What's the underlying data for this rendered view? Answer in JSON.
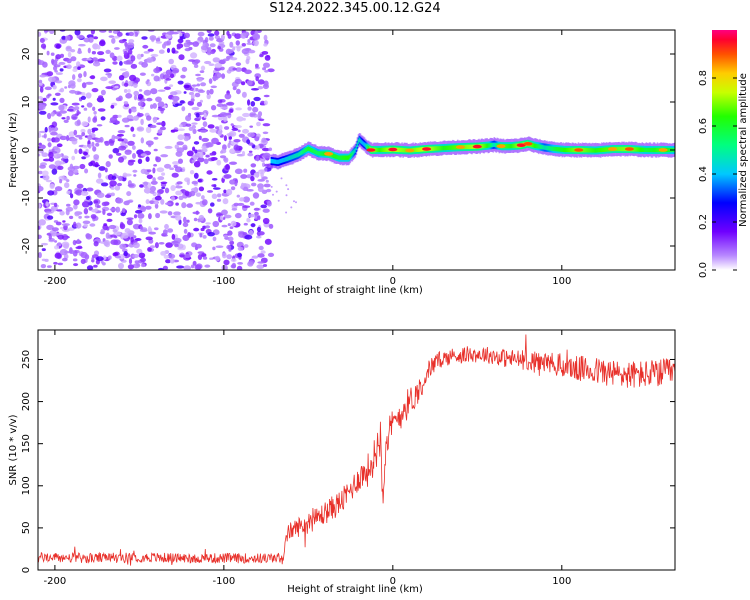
{
  "title": "S124.2022.345.00.12.G24",
  "chart_data": [
    {
      "type": "heatmap",
      "title": "S124.2022.345.00.12.G24",
      "xlabel": "Height of straight line (km)",
      "ylabel": "Frequency (Hz)",
      "xlim": [
        -210,
        167
      ],
      "ylim": [
        -25,
        25
      ],
      "xticks": [
        -200,
        -100,
        0,
        100
      ],
      "xtick_labels": [
        "-200",
        "-100",
        "0",
        "100"
      ],
      "yticks": [
        20,
        10,
        0,
        -10,
        -20
      ],
      "ytick_labels": [
        "20",
        "10",
        "0",
        "-10",
        "-20"
      ],
      "colorbar": {
        "label": "Normalized spectral amplitude",
        "range": [
          0,
          1
        ],
        "ticks": [
          0.0,
          0.2,
          0.4,
          0.6,
          0.8
        ],
        "tick_labels": [
          "0.0",
          "0.2",
          "0.4",
          "0.6",
          "0.8"
        ]
      },
      "noise_region": {
        "x_range": [
          -210,
          -72
        ],
        "freq_range": [
          -25,
          25
        ],
        "amplitude_range": [
          0.0,
          0.2
        ]
      },
      "ridge": {
        "x": [
          -72,
          -68,
          -62,
          -56,
          -50,
          -44,
          -38,
          -32,
          -26,
          -22,
          -20,
          -17,
          -13,
          -8,
          0,
          10,
          20,
          30,
          40,
          50,
          56,
          60,
          64,
          70,
          76,
          80,
          84,
          90,
          96,
          102,
          110,
          120,
          130,
          140,
          150,
          160,
          167
        ],
        "freq": [
          -2.3,
          -2.5,
          -1.8,
          -1.0,
          0.3,
          -0.7,
          -0.8,
          -1.6,
          -1.6,
          0.0,
          2.2,
          1.2,
          0.0,
          0.0,
          0.1,
          -0.1,
          0.2,
          0.4,
          0.6,
          0.7,
          0.9,
          1.1,
          0.8,
          0.8,
          1.0,
          1.3,
          0.9,
          0.5,
          0.2,
          0.0,
          0.0,
          -0.1,
          0.2,
          0.2,
          0.0,
          0.0,
          0.0
        ],
        "amplitude": [
          0.35,
          0.45,
          0.55,
          0.6,
          0.75,
          0.7,
          0.85,
          0.75,
          0.8,
          0.55,
          0.6,
          0.45,
          0.95,
          0.8,
          0.95,
          0.85,
          0.95,
          0.8,
          0.85,
          0.95,
          0.8,
          0.55,
          0.85,
          0.8,
          0.95,
          0.9,
          0.8,
          0.6,
          0.75,
          0.8,
          0.9,
          0.8,
          0.85,
          0.9,
          0.75,
          0.85,
          0.7
        ]
      }
    },
    {
      "type": "line",
      "xlabel": "Height of straight line (km)",
      "ylabel": "SNR (10 * v/v)",
      "xlim": [
        -210,
        167
      ],
      "ylim": [
        0,
        285
      ],
      "xticks": [
        -200,
        -100,
        0,
        100
      ],
      "xtick_labels": [
        "-200",
        "-100",
        "0",
        "100"
      ],
      "yticks": [
        0,
        50,
        100,
        150,
        200,
        250
      ],
      "ytick_labels": [
        "0",
        "50",
        "100",
        "150",
        "200",
        "250"
      ],
      "color": "#e8302a",
      "series": [
        {
          "name": "SNR",
          "x": [
            -210,
            -180,
            -150,
            -120,
            -90,
            -70,
            -65,
            -62,
            -55,
            -50,
            -40,
            -30,
            -25,
            -20,
            -15,
            -13,
            -10,
            -7,
            -6,
            -4,
            0,
            5,
            10,
            15,
            18,
            22,
            28,
            35,
            45,
            55,
            65,
            75,
            85,
            95,
            105,
            115,
            125,
            135,
            145,
            155,
            167
          ],
          "mean": [
            15,
            14,
            15,
            14,
            14,
            14,
            15,
            45,
            52,
            55,
            68,
            82,
            95,
            110,
            118,
            125,
            140,
            165,
            90,
            155,
            170,
            188,
            200,
            212,
            225,
            240,
            250,
            254,
            256,
            256,
            252,
            250,
            248,
            245,
            240,
            238,
            235,
            232,
            232,
            233,
            235
          ],
          "spread": [
            6,
            6,
            6,
            6,
            6,
            6,
            6,
            10,
            12,
            12,
            14,
            15,
            15,
            16,
            20,
            20,
            22,
            30,
            25,
            22,
            22,
            20,
            18,
            15,
            14,
            12,
            10,
            10,
            10,
            10,
            11,
            12,
            12,
            14,
            15,
            16,
            17,
            17,
            17,
            17,
            17
          ]
        }
      ]
    }
  ]
}
